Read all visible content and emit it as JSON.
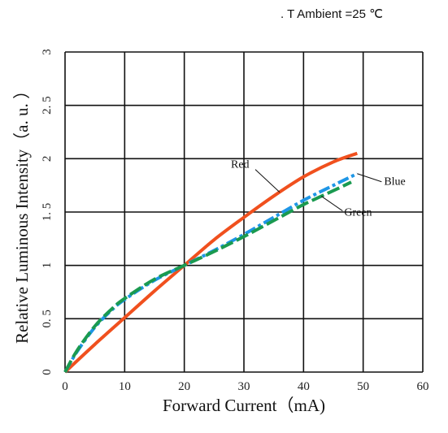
{
  "chart_data": {
    "type": "line",
    "title": "",
    "condition_label": ". T Ambient =25 ℃",
    "xlabel": "Forward Current（mA)",
    "ylabel": "Relative Luminous Intensity（a. u. ）",
    "xlim": [
      0,
      60
    ],
    "ylim": [
      0,
      3
    ],
    "x_ticks": [
      "0",
      "10",
      "20",
      "30",
      "40",
      "50",
      "60"
    ],
    "y_ticks": [
      "0",
      "0. 5",
      "1",
      "1. 5",
      "2",
      "2. 5",
      "3"
    ],
    "grid": true,
    "series": [
      {
        "name": "Red",
        "color": "#f0501e",
        "style": "solid",
        "x": [
          0,
          5,
          10,
          15,
          20,
          25,
          30,
          35,
          40,
          45,
          49
        ],
        "y": [
          0,
          0.26,
          0.51,
          0.76,
          1.0,
          1.24,
          1.45,
          1.65,
          1.83,
          1.97,
          2.05
        ]
      },
      {
        "name": "Blue",
        "color": "#1e96e6",
        "style": "dashdot",
        "x": [
          0,
          2,
          5,
          8,
          10,
          15,
          20,
          25,
          30,
          35,
          40,
          45,
          49
        ],
        "y": [
          0,
          0.19,
          0.42,
          0.59,
          0.68,
          0.86,
          1.0,
          1.14,
          1.29,
          1.45,
          1.61,
          1.75,
          1.86
        ]
      },
      {
        "name": "Green",
        "color": "#1a9a50",
        "style": "dashed",
        "x": [
          0,
          2,
          5,
          8,
          10,
          15,
          20,
          25,
          30,
          35,
          40,
          45,
          48
        ],
        "y": [
          0,
          0.2,
          0.43,
          0.6,
          0.69,
          0.87,
          1.0,
          1.13,
          1.27,
          1.42,
          1.57,
          1.7,
          1.78
        ]
      }
    ],
    "annotations": [
      {
        "text": "Red",
        "series": "Red",
        "at_x": 36
      },
      {
        "text": "Blue",
        "series": "Blue",
        "at_x": 49
      },
      {
        "text": "Green",
        "series": "Green",
        "at_x": 43
      }
    ]
  }
}
